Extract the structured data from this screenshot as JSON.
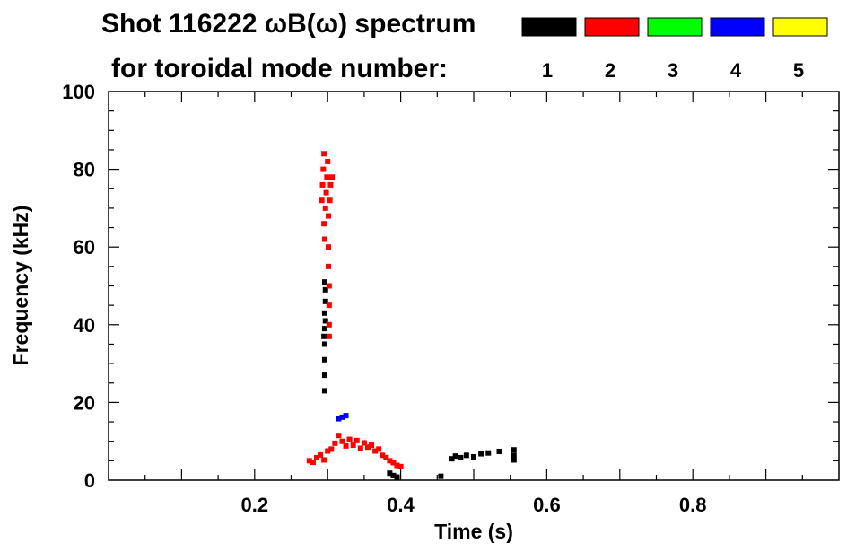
{
  "chart_data": {
    "type": "scatter",
    "title_line1": "Shot 116222 ωB(ω) spectrum",
    "title_line2": "for toroidal mode number:",
    "xlabel": "Time (s)",
    "ylabel": "Frequency (kHz)",
    "xlim": [
      0.0,
      1.0
    ],
    "ylim": [
      0,
      100
    ],
    "x_ticks": [
      0.2,
      0.4,
      0.6,
      0.8
    ],
    "x_tick_labels": [
      "0.2",
      "0.4",
      "0.6",
      "0.8"
    ],
    "y_ticks": [
      0,
      20,
      40,
      60,
      80,
      100
    ],
    "y_tick_labels": [
      "0",
      "20",
      "40",
      "60",
      "80",
      "100"
    ],
    "grid": false,
    "legend": {
      "placement": "top-right",
      "entries": [
        {
          "label": "1",
          "color": "#000000"
        },
        {
          "label": "2",
          "color": "#ff0000"
        },
        {
          "label": "3",
          "color": "#00ff00"
        },
        {
          "label": "4",
          "color": "#0000ff"
        },
        {
          "label": "5",
          "color": "#ffff00"
        }
      ]
    },
    "series": [
      {
        "name": "1",
        "color": "#000000",
        "points": [
          {
            "x": 0.296,
            "y": 23
          },
          {
            "x": 0.296,
            "y": 27
          },
          {
            "x": 0.296,
            "y": 31
          },
          {
            "x": 0.296,
            "y": 35
          },
          {
            "x": 0.295,
            "y": 37
          },
          {
            "x": 0.296,
            "y": 39
          },
          {
            "x": 0.297,
            "y": 41
          },
          {
            "x": 0.296,
            "y": 43
          },
          {
            "x": 0.297,
            "y": 46
          },
          {
            "x": 0.297,
            "y": 49
          },
          {
            "x": 0.296,
            "y": 51
          },
          {
            "x": 0.385,
            "y": 1.8
          },
          {
            "x": 0.39,
            "y": 1.2
          },
          {
            "x": 0.395,
            "y": 0.8
          },
          {
            "x": 0.455,
            "y": 1.0
          },
          {
            "x": 0.47,
            "y": 5.5
          },
          {
            "x": 0.475,
            "y": 6.2
          },
          {
            "x": 0.482,
            "y": 5.8
          },
          {
            "x": 0.49,
            "y": 6.4
          },
          {
            "x": 0.5,
            "y": 6.0
          },
          {
            "x": 0.51,
            "y": 6.8
          },
          {
            "x": 0.52,
            "y": 7.0
          },
          {
            "x": 0.535,
            "y": 7.4
          },
          {
            "x": 0.555,
            "y": 5.2
          },
          {
            "x": 0.555,
            "y": 6.4
          },
          {
            "x": 0.555,
            "y": 7.8
          }
        ]
      },
      {
        "name": "2",
        "color": "#ff0000",
        "points": [
          {
            "x": 0.292,
            "y": 72
          },
          {
            "x": 0.293,
            "y": 76
          },
          {
            "x": 0.294,
            "y": 80
          },
          {
            "x": 0.295,
            "y": 84
          },
          {
            "x": 0.297,
            "y": 70
          },
          {
            "x": 0.298,
            "y": 74
          },
          {
            "x": 0.299,
            "y": 78
          },
          {
            "x": 0.3,
            "y": 82
          },
          {
            "x": 0.301,
            "y": 68
          },
          {
            "x": 0.303,
            "y": 72
          },
          {
            "x": 0.304,
            "y": 76
          },
          {
            "x": 0.306,
            "y": 78
          },
          {
            "x": 0.295,
            "y": 66
          },
          {
            "x": 0.296,
            "y": 62
          },
          {
            "x": 0.301,
            "y": 60
          },
          {
            "x": 0.301,
            "y": 55
          },
          {
            "x": 0.302,
            "y": 50
          },
          {
            "x": 0.302,
            "y": 45
          },
          {
            "x": 0.302,
            "y": 40
          },
          {
            "x": 0.302,
            "y": 37
          },
          {
            "x": 0.275,
            "y": 5.0
          },
          {
            "x": 0.28,
            "y": 4.6
          },
          {
            "x": 0.285,
            "y": 5.8
          },
          {
            "x": 0.29,
            "y": 6.5
          },
          {
            "x": 0.295,
            "y": 5.2
          },
          {
            "x": 0.3,
            "y": 7.5
          },
          {
            "x": 0.305,
            "y": 8.0
          },
          {
            "x": 0.31,
            "y": 9.5
          },
          {
            "x": 0.315,
            "y": 11.5
          },
          {
            "x": 0.32,
            "y": 10.0
          },
          {
            "x": 0.325,
            "y": 8.8
          },
          {
            "x": 0.33,
            "y": 10.5
          },
          {
            "x": 0.335,
            "y": 9.0
          },
          {
            "x": 0.34,
            "y": 10.2
          },
          {
            "x": 0.345,
            "y": 8.2
          },
          {
            "x": 0.35,
            "y": 9.6
          },
          {
            "x": 0.355,
            "y": 8.5
          },
          {
            "x": 0.36,
            "y": 9.0
          },
          {
            "x": 0.365,
            "y": 7.5
          },
          {
            "x": 0.37,
            "y": 8.0
          },
          {
            "x": 0.375,
            "y": 6.4
          },
          {
            "x": 0.38,
            "y": 5.8
          },
          {
            "x": 0.385,
            "y": 5.0
          },
          {
            "x": 0.39,
            "y": 4.5
          },
          {
            "x": 0.395,
            "y": 3.8
          },
          {
            "x": 0.4,
            "y": 3.5
          }
        ]
      },
      {
        "name": "3",
        "color": "#00ff00",
        "points": []
      },
      {
        "name": "4",
        "color": "#0000ff",
        "points": [
          {
            "x": 0.315,
            "y": 15.8
          },
          {
            "x": 0.32,
            "y": 16.2
          },
          {
            "x": 0.325,
            "y": 16.6
          }
        ]
      },
      {
        "name": "5",
        "color": "#ffff00",
        "points": []
      }
    ]
  }
}
